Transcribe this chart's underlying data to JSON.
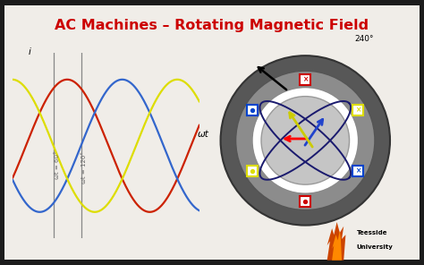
{
  "title": "AC Machines – Rotating Magnetic Field",
  "title_color": "#cc0000",
  "title_fontsize": 11.5,
  "bg_color": "#1a1a1a",
  "wave_colors": [
    "#cc2200",
    "#3366cc",
    "#dddd00"
  ],
  "annotation_60": "ωt = 60°",
  "annotation_120": "ωt = 120°",
  "xlabel": "ωt",
  "ylabel": "i",
  "degree_label": "240°",
  "navy": "#000066",
  "vline_color": "#888888",
  "white": "#ffffff",
  "light_gray": "#f0f0f0",
  "mid_gray": "#b0b0b0",
  "dark_gray": "#666666",
  "outer_gray": "#5a5a5a",
  "stator_gray": "#909090",
  "rotor_gray": "#c0c0c0",
  "inner_light": "#d0d0d0"
}
